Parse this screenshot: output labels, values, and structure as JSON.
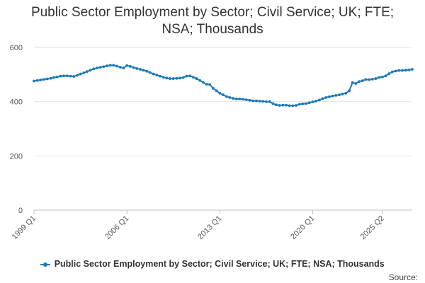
{
  "chart_data": {
    "type": "line",
    "title_lines": [
      "Public Sector Employment by Sector; Civil Service; UK; FTE;",
      "NSA; Thousands"
    ],
    "xlabel": "",
    "ylabel": "",
    "ylim": [
      0,
      600
    ],
    "yticks": [
      0,
      200,
      400,
      600
    ],
    "grid": true,
    "legend_position": "bottom",
    "x_start": "1999 Q1",
    "x_tick_labels": [
      {
        "label": "1999 Q1",
        "index": 0
      },
      {
        "label": "2006 Q1",
        "index": 28
      },
      {
        "label": "2013 Q1",
        "index": 56
      },
      {
        "label": "2020 Q1",
        "index": 84
      },
      {
        "label": "2025 Q2",
        "index": 105
      }
    ],
    "series": [
      {
        "name": "Public Sector Employment by Sector; Civil Service; UK; FTE; NSA; Thousands",
        "color": "#1a7ab8",
        "values": [
          476,
          478,
          480,
          482,
          484,
          486,
          489,
          491,
          494,
          495,
          495,
          494,
          493,
          497,
          502,
          506,
          511,
          516,
          521,
          524,
          527,
          529,
          532,
          534,
          534,
          531,
          527,
          524,
          533,
          530,
          526,
          522,
          519,
          516,
          512,
          507,
          502,
          498,
          494,
          490,
          487,
          485,
          485,
          486,
          487,
          489,
          494,
          495,
          490,
          485,
          478,
          471,
          464,
          463,
          449,
          440,
          431,
          425,
          419,
          415,
          412,
          410,
          410,
          409,
          407,
          405,
          403,
          403,
          402,
          401,
          400,
          400,
          393,
          388,
          386,
          387,
          387,
          385,
          385,
          386,
          390,
          392,
          393,
          396,
          399,
          402,
          406,
          411,
          415,
          418,
          421,
          423,
          425,
          428,
          431,
          440,
          470,
          467,
          474,
          477,
          482,
          481,
          483,
          485,
          489,
          491,
          495,
          503,
          510,
          513,
          515,
          515,
          516,
          517,
          519
        ]
      }
    ]
  },
  "source_label": "Source:"
}
